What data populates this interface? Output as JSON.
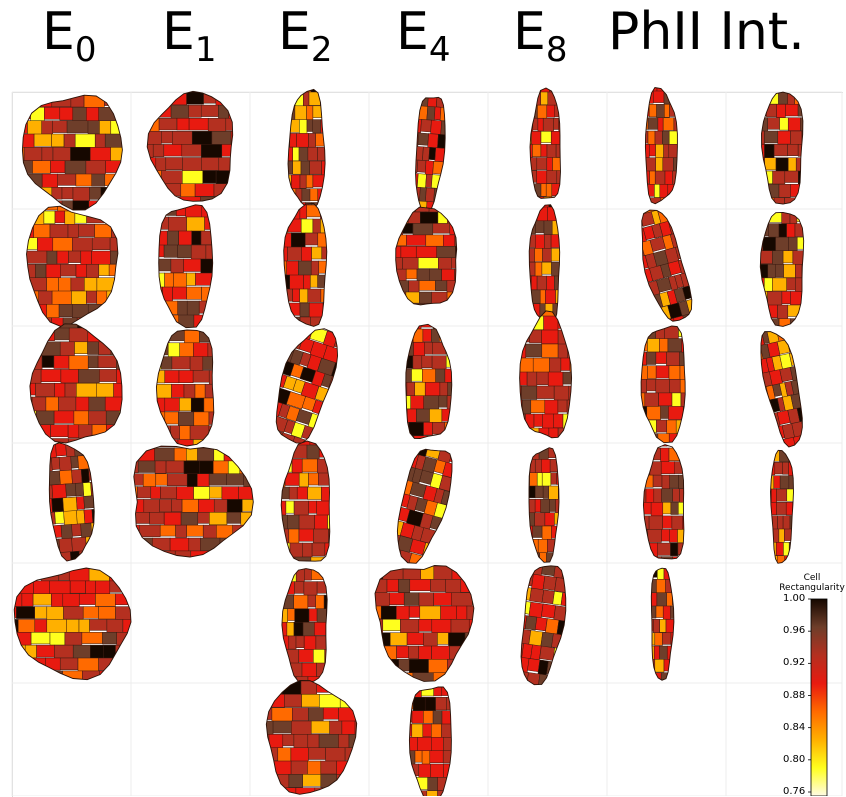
{
  "columns": [
    {
      "base": "E",
      "sub": "0"
    },
    {
      "base": "E",
      "sub": "1"
    },
    {
      "base": "E",
      "sub": "2"
    },
    {
      "base": "E",
      "sub": "4"
    },
    {
      "base": "E",
      "sub": "8"
    },
    {
      "base": "PhII Int.",
      "sub": ""
    }
  ],
  "colorbar": {
    "title_line1": "Cell",
    "title_line2": "Rectangularity",
    "ticks": [
      "1.00",
      "0.96",
      "0.92",
      "0.88",
      "0.84",
      "0.80",
      "0.76"
    ],
    "min": 0.76,
    "max": 1.0,
    "colors": [
      "#fffbe6",
      "#ffff1e",
      "#ffb000",
      "#ff6a00",
      "#e81a10",
      "#b43020",
      "#6e3e2a",
      "#160800"
    ]
  }
}
